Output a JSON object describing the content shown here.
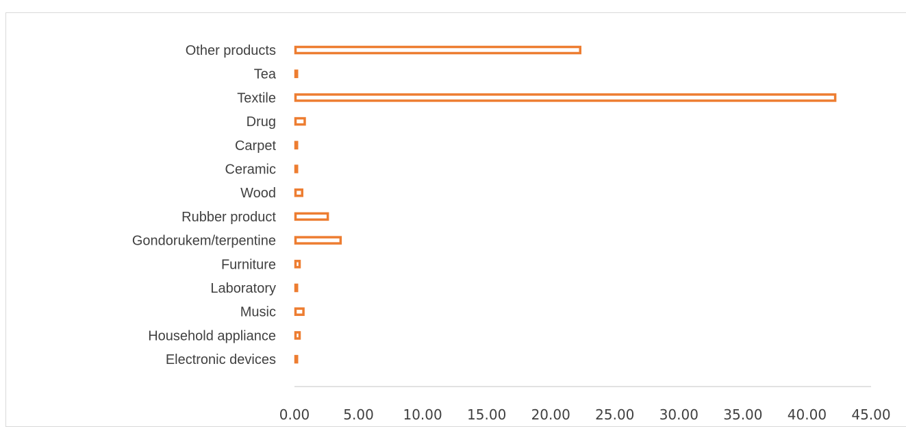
{
  "chart_data": {
    "type": "bar",
    "orientation": "horizontal",
    "title": "",
    "xlabel": "",
    "ylabel": "",
    "categories": [
      "Other products",
      "Tea",
      "Textile",
      "Drug",
      "Carpet",
      "Ceramic",
      "Wood",
      "Rubber product",
      "Gondorukem/terpentine",
      "Furniture",
      "Laboratory",
      "Music",
      "Household appliance",
      "Electronic devices"
    ],
    "values": [
      22.3,
      0.2,
      42.2,
      0.8,
      0.2,
      0.2,
      0.6,
      2.6,
      3.6,
      0.4,
      0.2,
      0.7,
      0.4,
      0.2
    ],
    "xlim": [
      0,
      45
    ],
    "xticks": [
      "0.00",
      "5.00",
      "10.00",
      "15.00",
      "20.00",
      "25.00",
      "30.00",
      "35.00",
      "40.00",
      "45.00"
    ],
    "grid": false,
    "legend": "none",
    "bar_style": "outline",
    "bar_color": "#ED7D31",
    "axis_color": "#d9d9d9"
  }
}
